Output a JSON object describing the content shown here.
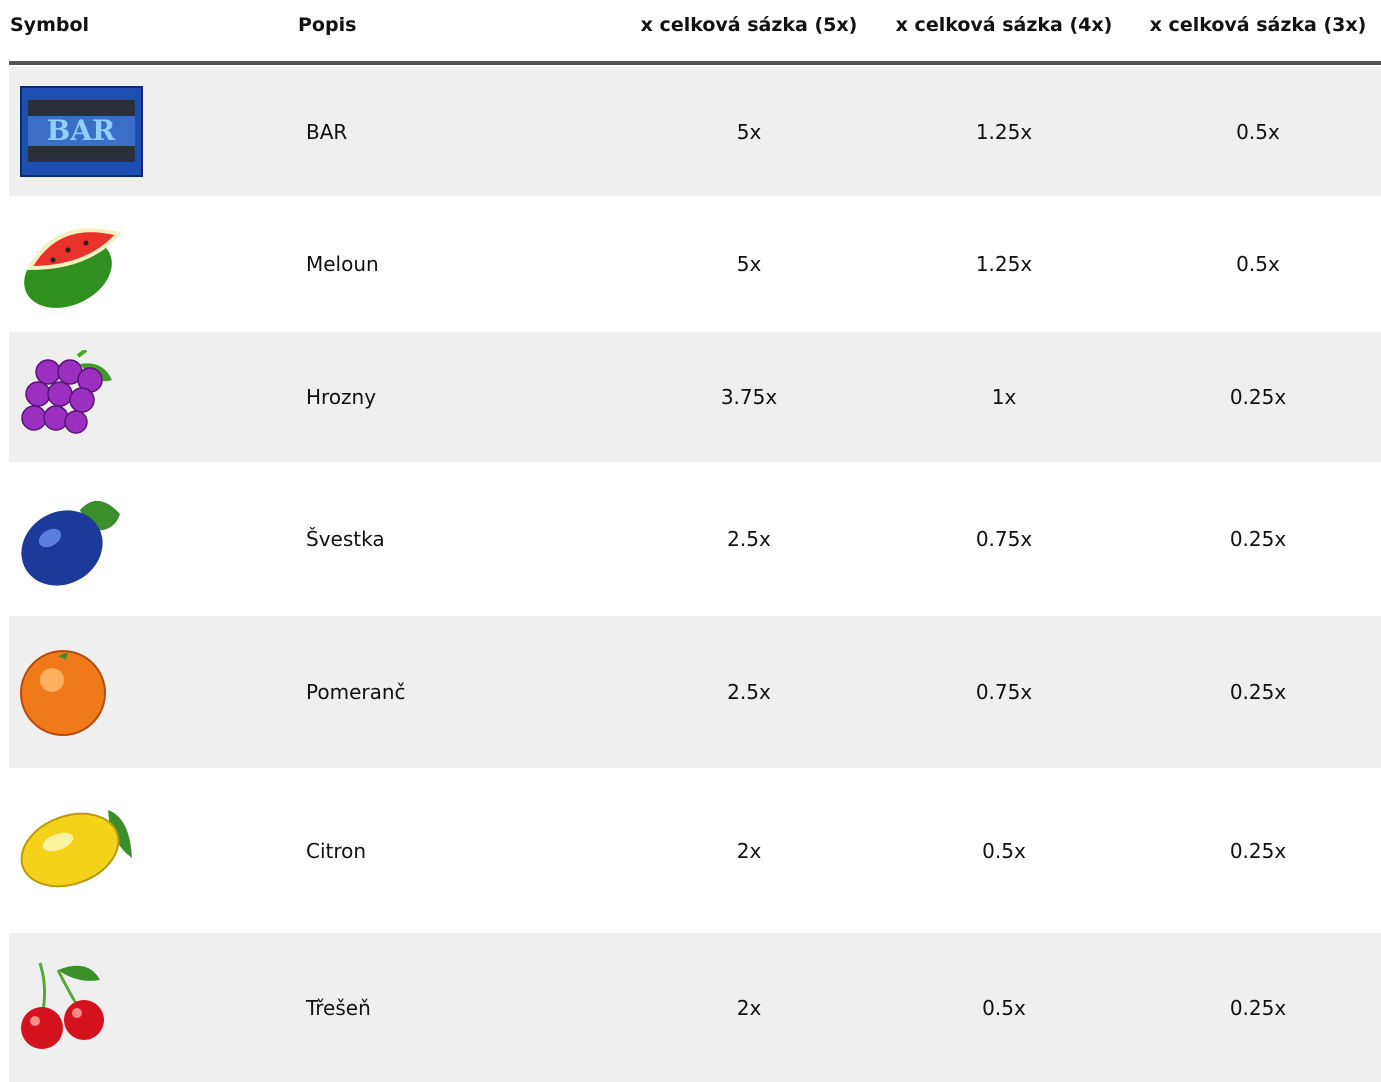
{
  "header": [
    "Symbol",
    "Popis",
    "x celková sázka (5x)",
    "x celková sázka (4x)",
    "x celková sázka (3x)"
  ],
  "rows": [
    {
      "label": "BAR",
      "values": [
        "5x",
        "1.25x",
        "0.5x"
      ]
    },
    {
      "label": "Meloun",
      "values": [
        "5x",
        "1.25x",
        "0.5x"
      ]
    },
    {
      "label": "Hrozny",
      "values": [
        "3.75x",
        "1x",
        "0.25x"
      ]
    },
    {
      "label": "Švestka",
      "values": [
        "2.5x",
        "0.75x",
        "0.25x"
      ]
    },
    {
      "label": "Pomeranč",
      "values": [
        "2.5x",
        "0.75x",
        "0.25x"
      ]
    },
    {
      "label": "Citron",
      "values": [
        "2x",
        "0.5x",
        "0.25x"
      ]
    },
    {
      "label": "Třešeň",
      "values": [
        "2x",
        "0.5x",
        "0.25x"
      ]
    }
  ]
}
